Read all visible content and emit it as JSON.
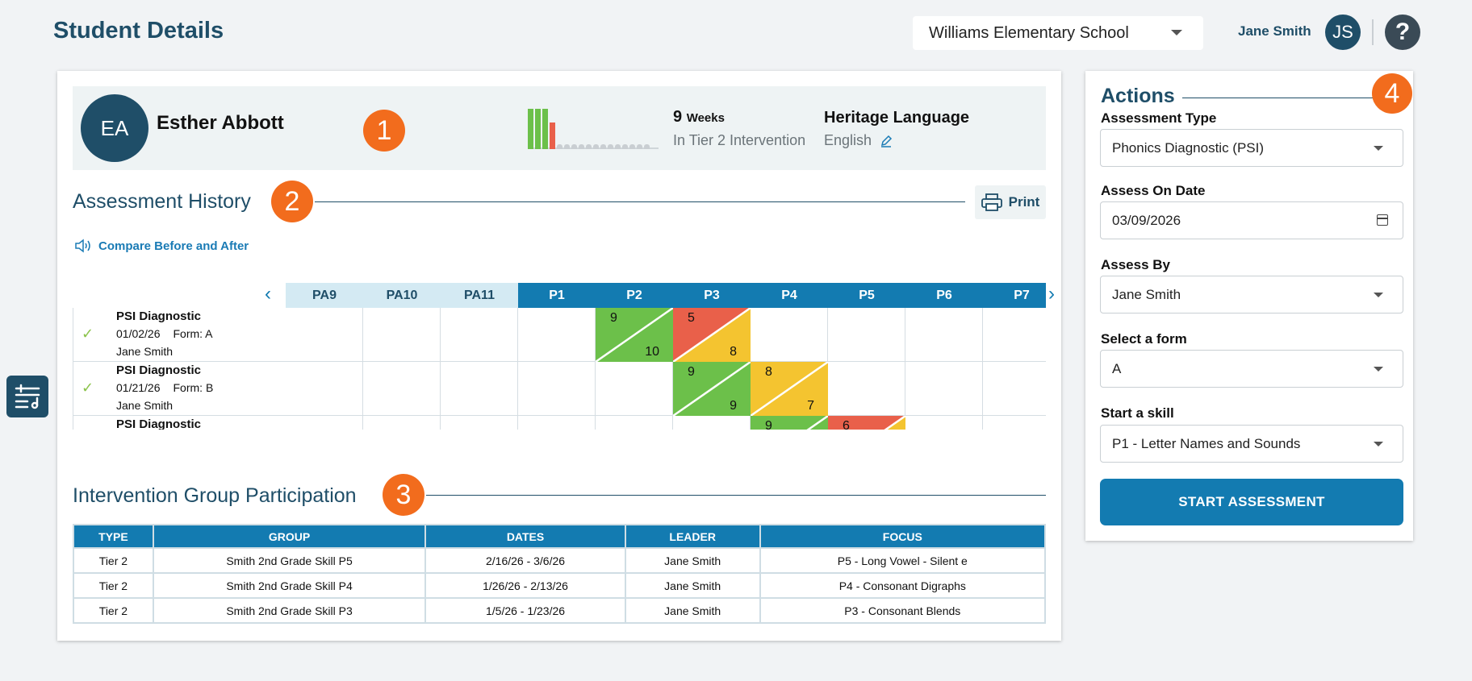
{
  "header": {
    "title": "Student Details",
    "school": "Williams Elementary School",
    "user_name": "Jane Smith",
    "user_initials": "JS",
    "help_glyph": "?"
  },
  "profile": {
    "initials": "EA",
    "name": "Esther Abbott",
    "weeks_count": "9",
    "weeks_unit": "Weeks",
    "weeks_label": "In Tier 2 Intervention",
    "heritage_title": "Heritage Language",
    "heritage_value": "English",
    "weekly_bars": [
      {
        "level": 0.9,
        "color": "#6cc04a"
      },
      {
        "level": 0.9,
        "color": "#6cc04a"
      },
      {
        "level": 0.9,
        "color": "#6cc04a"
      },
      {
        "level": 0.6,
        "color": "#e9604a"
      }
    ],
    "empty_weeks": 13
  },
  "badges": [
    "1",
    "2",
    "3",
    "4"
  ],
  "history": {
    "title": "Assessment History",
    "print_label": "Print",
    "compare_label": "Compare Before and After",
    "columns": [
      "PA9",
      "PA10",
      "PA11",
      "P1",
      "P2",
      "P3",
      "P4",
      "P5",
      "P6",
      "P7"
    ],
    "rows": [
      {
        "name": "PSI Diagnostic",
        "date": "01/02/26",
        "form": "Form: A",
        "assessor": "Jane Smith",
        "cells": [
          {
            "col": 4,
            "top": "9",
            "bottom": "10",
            "top_color": "#6cc04a",
            "bottom_color": "#6cc04a"
          },
          {
            "col": 5,
            "top": "5",
            "bottom": "8",
            "top_color": "#e9604a",
            "bottom_color": "#f4c430"
          }
        ]
      },
      {
        "name": "PSI Diagnostic",
        "date": "01/21/26",
        "form": "Form: B",
        "assessor": "Jane Smith",
        "cells": [
          {
            "col": 5,
            "top": "9",
            "bottom": "9",
            "top_color": "#6cc04a",
            "bottom_color": "#6cc04a"
          },
          {
            "col": 6,
            "top": "8",
            "bottom": "7",
            "top_color": "#f4c430",
            "bottom_color": "#f4c430"
          }
        ]
      },
      {
        "name": "PSI Diagnostic",
        "date": "",
        "form": "",
        "assessor": "",
        "cells": [
          {
            "col": 6,
            "top": "9",
            "bottom": "",
            "top_color": "#6cc04a",
            "bottom_color": "#6cc04a"
          },
          {
            "col": 7,
            "top": "6",
            "bottom": "",
            "top_color": "#e9604a",
            "bottom_color": "#f4c430"
          }
        ]
      }
    ]
  },
  "groups": {
    "title": "Intervention Group Participation",
    "headers": [
      "TYPE",
      "GROUP",
      "DATES",
      "LEADER",
      "FOCUS"
    ],
    "rows": [
      [
        "Tier 2",
        "Smith 2nd Grade Skill P5",
        "2/16/26 - 3/6/26",
        "Jane Smith",
        "P5 - Long Vowel - Silent e"
      ],
      [
        "Tier 2",
        "Smith 2nd Grade Skill P4",
        "1/26/26 - 2/13/26",
        "Jane Smith",
        "P4 - Consonant Digraphs"
      ],
      [
        "Tier 2",
        "Smith 2nd Grade Skill P3",
        "1/5/26 - 1/23/26",
        "Jane Smith",
        "P3 - Consonant Blends"
      ]
    ]
  },
  "actions": {
    "title": "Actions",
    "assessment_type_label": "Assessment Type",
    "assessment_type_value": "Phonics Diagnostic (PSI)",
    "assess_date_label": "Assess On Date",
    "assess_date_value": "03/09/2026",
    "assess_by_label": "Assess By",
    "assess_by_value": "Jane Smith",
    "form_label": "Select a form",
    "form_value": "A",
    "skill_label": "Start a skill",
    "skill_value": "P1 - Letter Names and Sounds",
    "start_button": "START ASSESSMENT"
  }
}
